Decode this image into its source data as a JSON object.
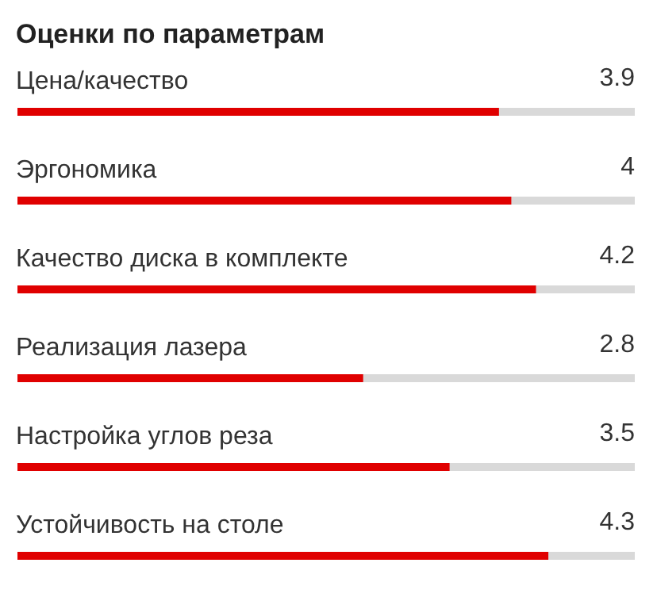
{
  "chart_data": {
    "type": "bar",
    "orientation": "horizontal",
    "title": "Оценки по параметрам",
    "categories": [
      "Цена/качество",
      "Эргономика",
      "Качество диска в комплекте",
      "Реализация лазера",
      "Настройка углов реза",
      "Устойчивость на столе"
    ],
    "values": [
      3.9,
      4,
      4.2,
      2.8,
      3.5,
      4.3
    ],
    "color": "#e00000",
    "xlim": [
      0,
      5
    ],
    "tick_labels": "y",
    "data_labels": true
  }
}
